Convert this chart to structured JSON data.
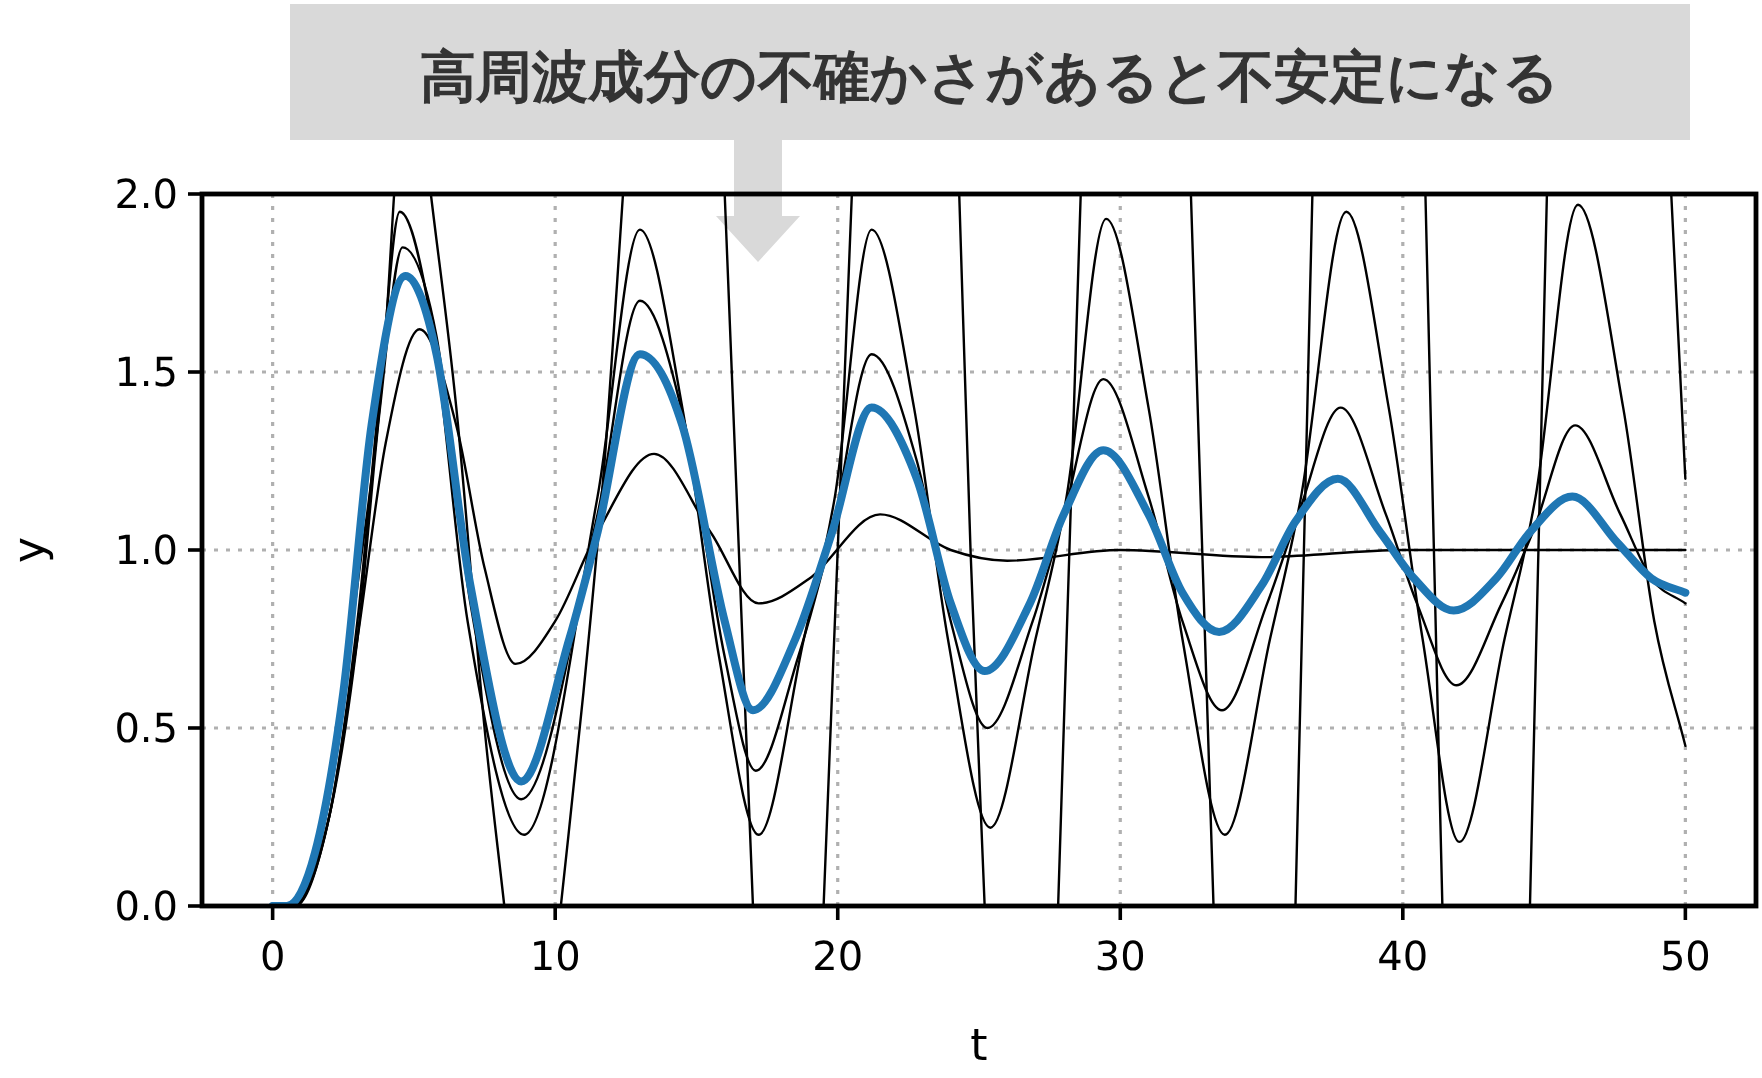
{
  "chart_data": {
    "type": "line",
    "annotations": [
      "高周波成分の不確かさがあると不安定になる"
    ],
    "xlabel": "t",
    "ylabel": "y",
    "xlim": [
      -2.5,
      52.5
    ],
    "ylim": [
      0,
      2
    ],
    "xticks": [
      0,
      10,
      20,
      30,
      40,
      50
    ],
    "yticks": [
      {
        "value": 0,
        "label": "0.0"
      },
      0.5,
      {
        "value": 1,
        "label": "1.0"
      },
      1.5,
      {
        "value": 2,
        "label": "2.0"
      }
    ],
    "grid": true,
    "marker": "none",
    "line_style": "solid",
    "series": [
      {
        "color": "#000000",
        "x": [
          0,
          0.8,
          2,
          3,
          4,
          5.2,
          6.5,
          7.5,
          8.6,
          10,
          11.5,
          13.5,
          15.5,
          17.2,
          19,
          21.5,
          24,
          26,
          30,
          35,
          40,
          45,
          50
        ],
        "values": [
          0,
          0,
          0.25,
          0.75,
          1.3,
          1.62,
          1.35,
          0.95,
          0.68,
          0.8,
          1.05,
          1.27,
          1.05,
          0.85,
          0.92,
          1.1,
          1.0,
          0.97,
          1.0,
          0.98,
          1.0,
          1.0,
          1.0
        ]
      },
      {
        "color": "#000000",
        "x": [
          0,
          0.7,
          2,
          3,
          3.8,
          4.6,
          5.8,
          7,
          8.8,
          11.5,
          13,
          14.6,
          16,
          17.1,
          18.6,
          19.8,
          21.2,
          22.8,
          24,
          25.3,
          26.9,
          28,
          29.4,
          31,
          32.2,
          33.6,
          35.2,
          36.3,
          37.8,
          39.4,
          40.5,
          41.9,
          43.5,
          44.6,
          46.1,
          47.7,
          48.8,
          50
        ],
        "values": [
          0,
          0,
          0.25,
          0.75,
          1.4,
          1.85,
          1.6,
          0.85,
          0.3,
          1.1,
          1.7,
          1.35,
          0.7,
          0.38,
          0.7,
          1.05,
          1.55,
          1.25,
          0.8,
          0.5,
          0.8,
          1.1,
          1.48,
          1.15,
          0.8,
          0.55,
          0.85,
          1.1,
          1.4,
          1.1,
          0.85,
          0.62,
          0.85,
          1.05,
          1.35,
          1.1,
          0.92,
          0.85
        ]
      },
      {
        "color": "#000000",
        "x": [
          0,
          0.7,
          2,
          3,
          3.8,
          4.5,
          5.7,
          6.9,
          8.9,
          11.5,
          13,
          14.5,
          15.8,
          17.2,
          18.8,
          19.9,
          21.2,
          22.7,
          23.9,
          25.4,
          27,
          28.1,
          29.5,
          31,
          32.2,
          33.7,
          35.3,
          36.4,
          38,
          39.5,
          40.7,
          42,
          43.6,
          44.7,
          46.2,
          47.8,
          48.9,
          50
        ],
        "values": [
          0,
          0,
          0.25,
          0.8,
          1.45,
          1.95,
          1.6,
          0.8,
          0.2,
          1.15,
          1.9,
          1.4,
          0.7,
          0.2,
          0.75,
          1.15,
          1.9,
          1.4,
          0.75,
          0.22,
          0.75,
          1.15,
          1.93,
          1.4,
          0.75,
          0.2,
          0.75,
          1.15,
          1.95,
          1.4,
          0.75,
          0.18,
          0.75,
          1.15,
          1.97,
          1.4,
          0.8,
          0.45
        ]
      },
      {
        "color": "#000000",
        "x": [
          0,
          0.8,
          2,
          3,
          3.9,
          4.3,
          null,
          5.6,
          6.5,
          7.5,
          8.2,
          null,
          10.2,
          11,
          11.8,
          12.4,
          null,
          16,
          16.5,
          17,
          null,
          19.5,
          20,
          20.5,
          null,
          24.3,
          24.7,
          25.2,
          null,
          27.8,
          28.2,
          28.6,
          null,
          32.5,
          32.9,
          33.3,
          null,
          36.2,
          36.5,
          36.8,
          null,
          40.8,
          41.1,
          41.4,
          null,
          44.5,
          44.8,
          45.1,
          null,
          49.5,
          50
        ],
        "values": [
          0,
          0,
          0.3,
          0.9,
          1.5,
          2.0,
          null,
          2.0,
          1.4,
          0.5,
          0.0,
          null,
          0.0,
          0.6,
          1.3,
          2.0,
          null,
          2.0,
          1.0,
          0.0,
          null,
          0.0,
          1.0,
          2.0,
          null,
          2.0,
          1.0,
          0.0,
          null,
          0.0,
          1.0,
          2.0,
          null,
          2.0,
          1.0,
          0.0,
          null,
          0.0,
          1.0,
          2.0,
          null,
          2.0,
          1.0,
          0.0,
          null,
          0.0,
          1.0,
          2.0,
          null,
          2.0,
          1.2
        ]
      },
      {
        "color": "#1f77b4",
        "x": [
          0,
          0.5,
          1.5,
          2.5,
          3.5,
          4.7,
          5.8,
          7,
          8.8,
          10.5,
          11.5,
          13,
          14.5,
          16,
          17,
          18.5,
          19.8,
          21.2,
          22.8,
          24,
          25.2,
          26.8,
          28,
          29.4,
          31,
          32.2,
          33.5,
          35,
          36.2,
          37.7,
          39.2,
          40.4,
          41.8,
          43.3,
          44.5,
          46,
          47.6,
          48.8,
          50
        ],
        "values": [
          0,
          0,
          0.15,
          0.6,
          1.35,
          1.77,
          1.55,
          0.9,
          0.35,
          0.75,
          1.05,
          1.55,
          1.35,
          0.8,
          0.55,
          0.75,
          1.05,
          1.4,
          1.2,
          0.85,
          0.66,
          0.85,
          1.1,
          1.28,
          1.1,
          0.88,
          0.77,
          0.9,
          1.08,
          1.2,
          1.05,
          0.92,
          0.83,
          0.92,
          1.05,
          1.15,
          1.02,
          0.92,
          0.88
        ]
      }
    ]
  }
}
